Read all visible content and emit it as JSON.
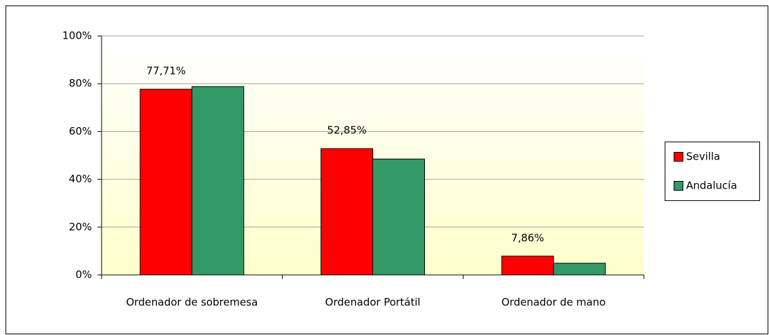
{
  "chart_data": {
    "type": "bar",
    "categories": [
      "Ordenador de sobremesa",
      "Ordenador Portátil",
      "Ordenador de mano"
    ],
    "series": [
      {
        "name": "Sevilla",
        "color": "#ff0000",
        "values": [
          77.71,
          52.85,
          7.86
        ],
        "value_labels": [
          "77,71%",
          "52,85%",
          "7,86%"
        ]
      },
      {
        "name": "Andalucía",
        "color": "#339966",
        "values": [
          78.8,
          48.5,
          4.9
        ]
      }
    ],
    "ylim": [
      0,
      100
    ],
    "yticks": [
      {
        "value": 0,
        "label": "0%"
      },
      {
        "value": 20,
        "label": "20%"
      },
      {
        "value": 40,
        "label": "40%"
      },
      {
        "value": 60,
        "label": "60%"
      },
      {
        "value": 80,
        "label": "80%"
      },
      {
        "value": 100,
        "label": "100%"
      }
    ],
    "grid": true,
    "legend": "right"
  }
}
